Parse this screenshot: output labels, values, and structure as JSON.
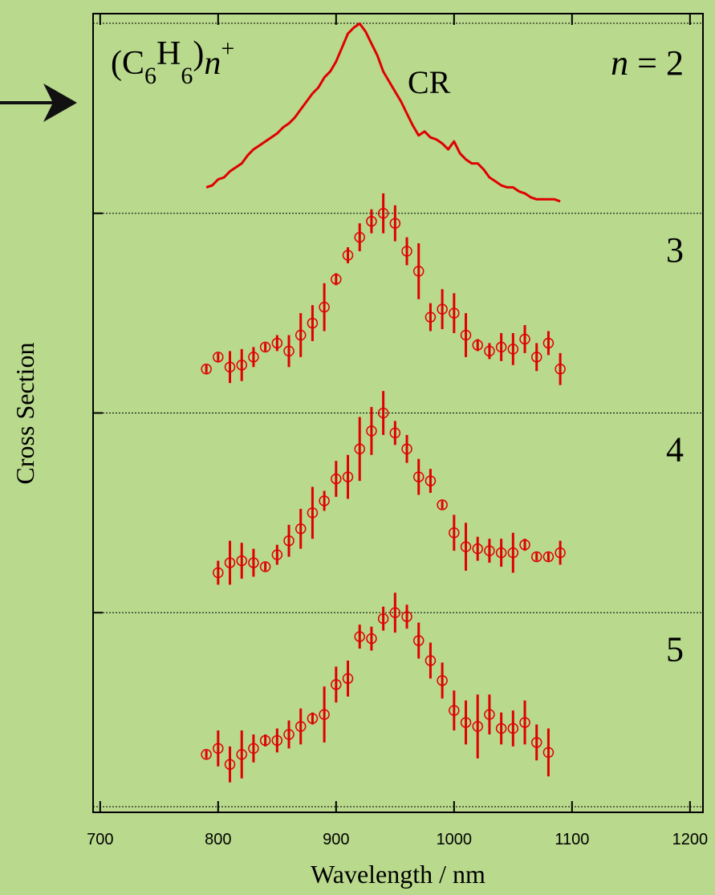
{
  "chart_data": {
    "type": "panels",
    "y_label": "Cross Section",
    "x_label": "Wavelength / nm",
    "xlim": [
      694,
      1211
    ],
    "xticks": [
      700,
      800,
      900,
      1000,
      1100,
      1200
    ],
    "color": "#e00000",
    "formula": [
      "(C",
      "6",
      "H",
      "6",
      ")",
      "n",
      "+"
    ],
    "annotation": "CR",
    "panels": [
      {
        "type": "line",
        "label": "n = 2",
        "ylim": [
          0,
          1
        ],
        "x": [
          790,
          795,
          800,
          805,
          810,
          815,
          820,
          825,
          830,
          835,
          840,
          845,
          850,
          855,
          860,
          865,
          870,
          875,
          880,
          885,
          890,
          895,
          900,
          905,
          910,
          915,
          920,
          925,
          930,
          935,
          940,
          945,
          950,
          955,
          960,
          965,
          970,
          975,
          980,
          985,
          990,
          995,
          1000,
          1005,
          1010,
          1015,
          1020,
          1025,
          1030,
          1035,
          1040,
          1045,
          1050,
          1055,
          1060,
          1065,
          1070,
          1075,
          1080,
          1085,
          1090
        ],
        "values": [
          0.13,
          0.14,
          0.17,
          0.18,
          0.21,
          0.23,
          0.25,
          0.29,
          0.32,
          0.34,
          0.36,
          0.38,
          0.4,
          0.43,
          0.45,
          0.48,
          0.52,
          0.56,
          0.6,
          0.63,
          0.68,
          0.71,
          0.76,
          0.83,
          0.9,
          0.93,
          0.95,
          0.91,
          0.85,
          0.79,
          0.71,
          0.66,
          0.61,
          0.56,
          0.5,
          0.44,
          0.39,
          0.41,
          0.38,
          0.37,
          0.35,
          0.32,
          0.36,
          0.3,
          0.27,
          0.25,
          0.25,
          0.22,
          0.18,
          0.16,
          0.14,
          0.13,
          0.13,
          0.11,
          0.1,
          0.08,
          0.07,
          0.07,
          0.07,
          0.07,
          0.06
        ]
      },
      {
        "type": "errorbar",
        "label": "3",
        "ylim": [
          0,
          1
        ],
        "x": [
          790,
          800,
          810,
          820,
          830,
          840,
          850,
          860,
          870,
          880,
          890,
          900,
          910,
          920,
          930,
          940,
          950,
          960,
          970,
          980,
          990,
          1000,
          1010,
          1020,
          1030,
          1040,
          1050,
          1060,
          1070,
          1080,
          1090
        ],
        "values": [
          0.22,
          0.28,
          0.23,
          0.24,
          0.28,
          0.33,
          0.35,
          0.31,
          0.39,
          0.45,
          0.53,
          0.67,
          0.79,
          0.88,
          0.96,
          1.0,
          0.95,
          0.81,
          0.71,
          0.48,
          0.52,
          0.5,
          0.39,
          0.34,
          0.31,
          0.33,
          0.32,
          0.37,
          0.28,
          0.35,
          0.22
        ],
        "errors": [
          0.02,
          0.02,
          0.08,
          0.08,
          0.05,
          0.02,
          0.04,
          0.08,
          0.11,
          0.09,
          0.12,
          0.03,
          0.04,
          0.07,
          0.06,
          0.1,
          0.09,
          0.07,
          0.14,
          0.07,
          0.1,
          0.1,
          0.11,
          0.03,
          0.04,
          0.07,
          0.08,
          0.07,
          0.07,
          0.06,
          0.08
        ]
      },
      {
        "type": "errorbar",
        "label": "4",
        "ylim": [
          0,
          1
        ],
        "x": [
          800,
          810,
          820,
          830,
          840,
          850,
          860,
          870,
          880,
          890,
          900,
          910,
          920,
          930,
          940,
          950,
          960,
          970,
          980,
          990,
          1000,
          1010,
          1020,
          1030,
          1040,
          1050,
          1060,
          1070,
          1080,
          1090
        ],
        "values": [
          0.2,
          0.25,
          0.26,
          0.25,
          0.23,
          0.29,
          0.36,
          0.42,
          0.5,
          0.56,
          0.67,
          0.68,
          0.82,
          0.91,
          1.0,
          0.9,
          0.82,
          0.68,
          0.66,
          0.54,
          0.4,
          0.33,
          0.32,
          0.31,
          0.3,
          0.3,
          0.34,
          0.28,
          0.28,
          0.3
        ],
        "errors": [
          0.06,
          0.11,
          0.09,
          0.07,
          0.02,
          0.05,
          0.08,
          0.1,
          0.13,
          0.05,
          0.09,
          0.11,
          0.16,
          0.12,
          0.11,
          0.06,
          0.07,
          0.09,
          0.06,
          0.02,
          0.09,
          0.12,
          0.06,
          0.06,
          0.07,
          0.1,
          0.03,
          0.02,
          0.02,
          0.06
        ]
      },
      {
        "type": "errorbar",
        "label": "5",
        "ylim": [
          0,
          1
        ],
        "x": [
          790,
          800,
          810,
          820,
          830,
          840,
          850,
          860,
          870,
          880,
          890,
          900,
          910,
          920,
          930,
          940,
          950,
          960,
          970,
          980,
          990,
          1000,
          1010,
          1020,
          1030,
          1040,
          1050,
          1060,
          1070,
          1080
        ],
        "values": [
          0.29,
          0.32,
          0.24,
          0.29,
          0.32,
          0.36,
          0.36,
          0.39,
          0.43,
          0.47,
          0.49,
          0.64,
          0.67,
          0.88,
          0.87,
          0.97,
          1.0,
          0.98,
          0.86,
          0.76,
          0.66,
          0.51,
          0.45,
          0.43,
          0.49,
          0.42,
          0.42,
          0.45,
          0.35,
          0.3
        ],
        "errors": [
          0.02,
          0.09,
          0.09,
          0.12,
          0.07,
          0.03,
          0.06,
          0.07,
          0.09,
          0.03,
          0.14,
          0.09,
          0.09,
          0.06,
          0.06,
          0.06,
          0.1,
          0.06,
          0.09,
          0.09,
          0.09,
          0.1,
          0.11,
          0.16,
          0.1,
          0.08,
          0.09,
          0.11,
          0.09,
          0.12
        ]
      }
    ]
  }
}
